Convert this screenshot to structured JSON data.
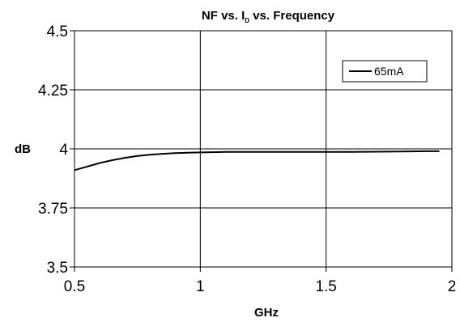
{
  "chart_data": {
    "type": "line",
    "title": {
      "main": "NF vs. I",
      "subscript": "D",
      "rest": " vs. Frequency"
    },
    "xlabel": "GHz",
    "ylabel": "dB",
    "xlim": [
      0.5,
      2
    ],
    "ylim": [
      3.5,
      4.5
    ],
    "x_ticks": [
      "0.5",
      "1",
      "1.5",
      "2"
    ],
    "y_ticks": [
      "4.5",
      "4.25",
      "4",
      "3.75",
      "3.5"
    ],
    "x_tick_values": [
      0.5,
      1,
      1.5,
      2
    ],
    "y_tick_values": [
      4.5,
      4.25,
      4,
      3.75,
      3.5
    ],
    "grid": true,
    "legend_position": "top-right",
    "series": [
      {
        "name": "65mA",
        "x": [
          0.5,
          0.55,
          0.6,
          0.65,
          0.7,
          0.75,
          0.8,
          0.85,
          0.9,
          0.95,
          1.0,
          1.05,
          1.1,
          1.2,
          1.3,
          1.4,
          1.5,
          1.6,
          1.7,
          1.8,
          1.9,
          1.95
        ],
        "values": [
          3.91,
          3.925,
          3.94,
          3.952,
          3.962,
          3.97,
          3.975,
          3.979,
          3.982,
          3.984,
          3.985,
          3.986,
          3.987,
          3.987,
          3.987,
          3.987,
          3.987,
          3.987,
          3.988,
          3.989,
          3.99,
          3.99
        ]
      }
    ]
  }
}
